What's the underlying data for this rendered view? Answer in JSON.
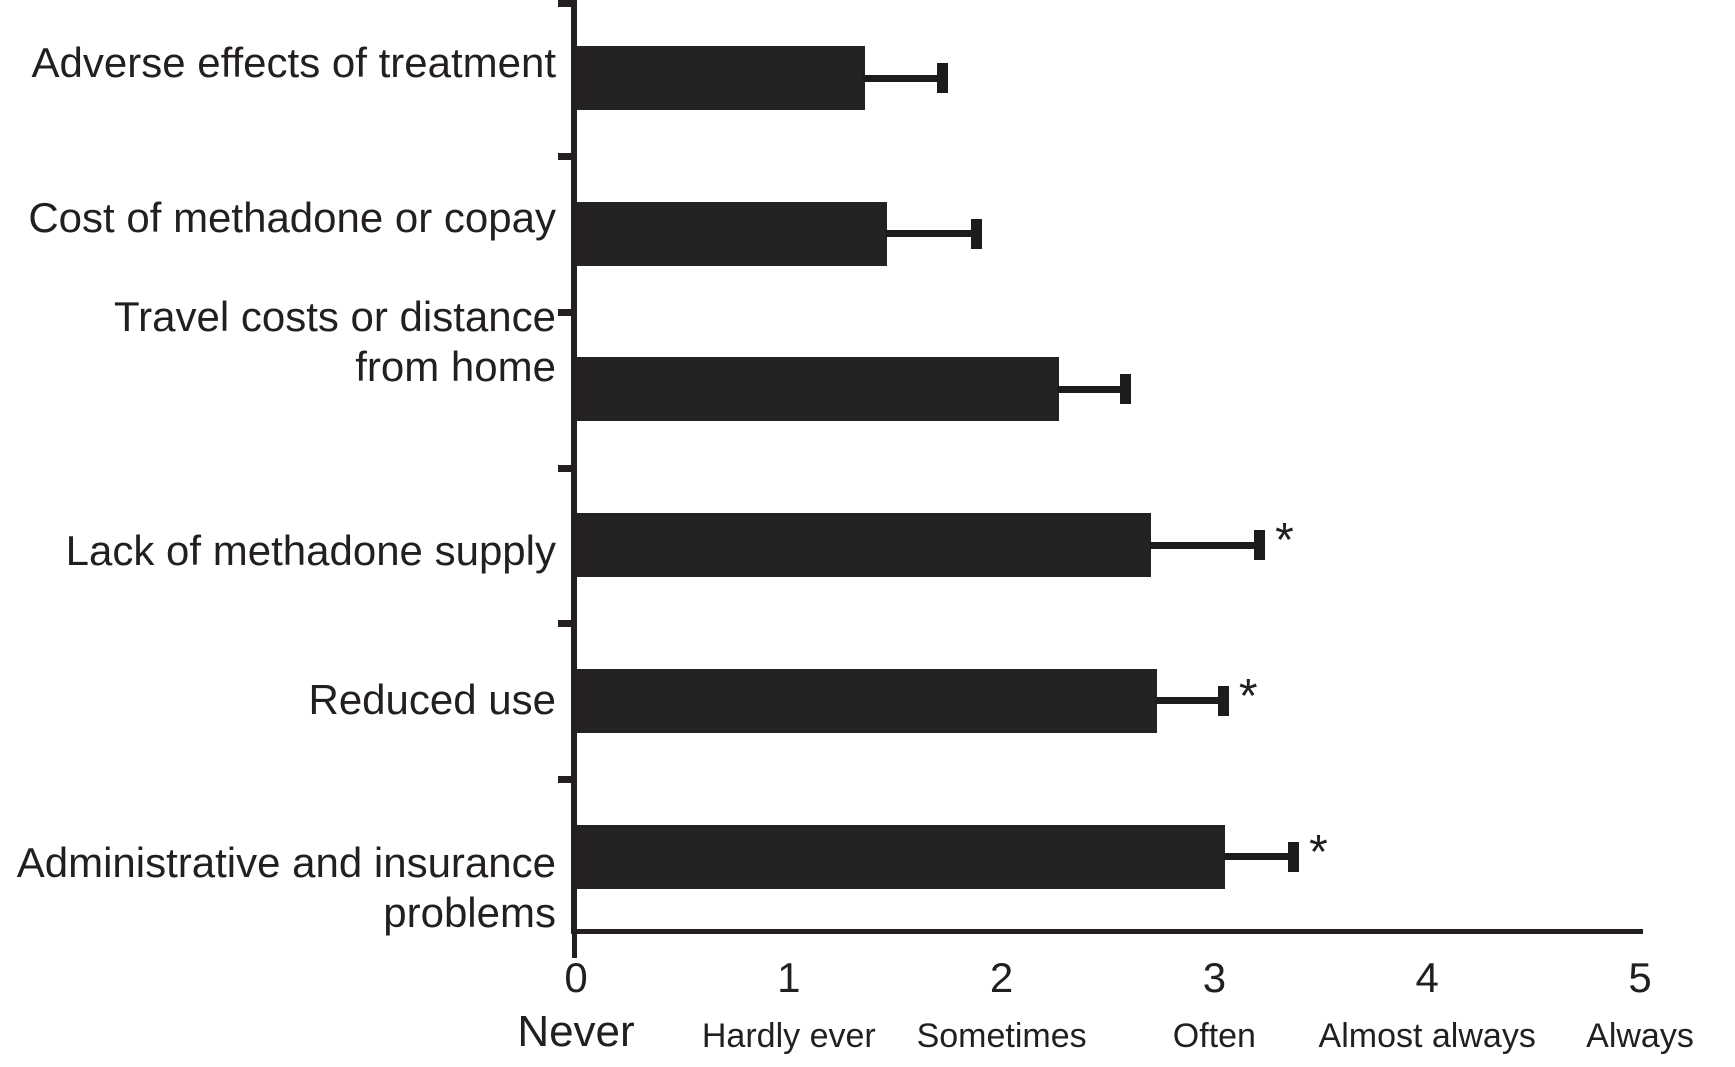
{
  "chart_data": {
    "type": "bar",
    "orientation": "horizontal",
    "title": "",
    "xlabel": "",
    "ylabel": "",
    "xlim": [
      0,
      5
    ],
    "grid": false,
    "legend": null,
    "bar_color": "#252223",
    "axis_color": "#231f20",
    "significance_marker": "*",
    "categories": [
      "Adverse effects of treatment",
      "Cost of methadone or copay",
      "Travel costs or distance from home",
      "Lack of methadone supply",
      "Reduced use",
      "Administrative and insurance problems"
    ],
    "bars": [
      {
        "label_lines": [
          "Adverse effects of treatment"
        ],
        "value": 1.36,
        "error_upper_end": 1.72,
        "significant": false
      },
      {
        "label_lines": [
          "Cost of methadone or copay"
        ],
        "value": 1.46,
        "error_upper_end": 1.88,
        "significant": false
      },
      {
        "label_lines": [
          "Travel costs or distance",
          "from home"
        ],
        "value": 2.27,
        "error_upper_end": 2.58,
        "significant": false
      },
      {
        "label_lines": [
          "Lack of methadone supply"
        ],
        "value": 2.7,
        "error_upper_end": 3.21,
        "significant": true
      },
      {
        "label_lines": [
          "Reduced use"
        ],
        "value": 2.73,
        "error_upper_end": 3.04,
        "significant": true
      },
      {
        "label_lines": [
          "Administrative and insurance",
          "problems"
        ],
        "value": 3.05,
        "error_upper_end": 3.37,
        "significant": true
      }
    ],
    "x_ticks": [
      0,
      1,
      2,
      3,
      4,
      5
    ],
    "x_tick_labels": [
      "0",
      "1",
      "2",
      "3",
      "4",
      "5"
    ],
    "x_tick_words": [
      "Never",
      "Hardly ever",
      "Sometimes",
      "Often",
      "Almost always",
      "Always"
    ]
  }
}
